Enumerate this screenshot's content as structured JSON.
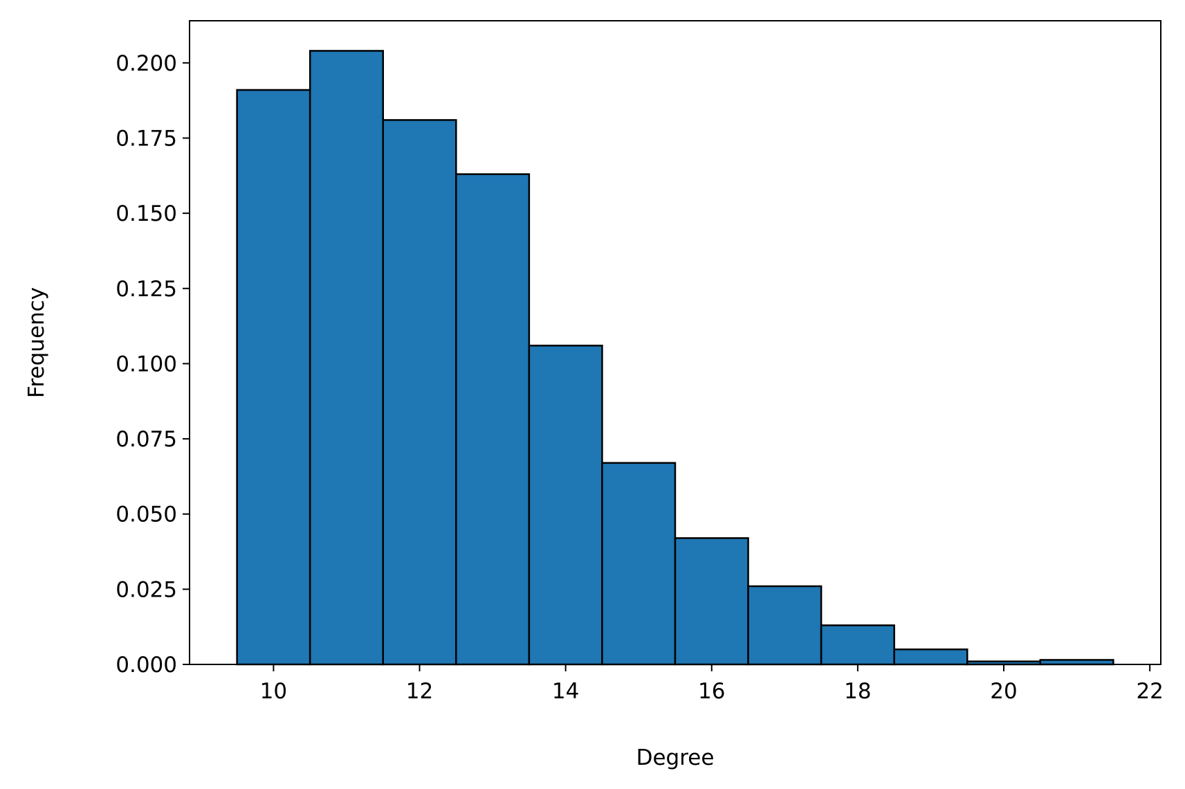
{
  "chart_data": {
    "type": "bar",
    "xlabel": "Degree",
    "ylabel": "Frequency",
    "xlim": [
      8.85,
      22.15
    ],
    "ylim": [
      0,
      0.214
    ],
    "x_ticks": [
      10,
      12,
      14,
      16,
      18,
      20,
      22
    ],
    "x_tick_labels": [
      "10",
      "12",
      "14",
      "16",
      "18",
      "20",
      "22"
    ],
    "y_ticks": [
      0,
      0.025,
      0.05,
      0.075,
      0.1,
      0.125,
      0.15,
      0.175,
      0.2
    ],
    "y_tick_labels": [
      "0.000",
      "0.025",
      "0.050",
      "0.075",
      "0.100",
      "0.125",
      "0.150",
      "0.175",
      "0.200"
    ],
    "bin_width": 1,
    "bins": [
      10,
      11,
      12,
      13,
      14,
      15,
      16,
      17,
      18,
      19,
      20,
      21
    ],
    "values": [
      0.191,
      0.204,
      0.181,
      0.163,
      0.106,
      0.067,
      0.042,
      0.026,
      0.013,
      0.005,
      0.001,
      0.0015
    ],
    "bar_color": "#1f77b4",
    "edge_color": "#000000",
    "grid": false,
    "legend": "none"
  }
}
